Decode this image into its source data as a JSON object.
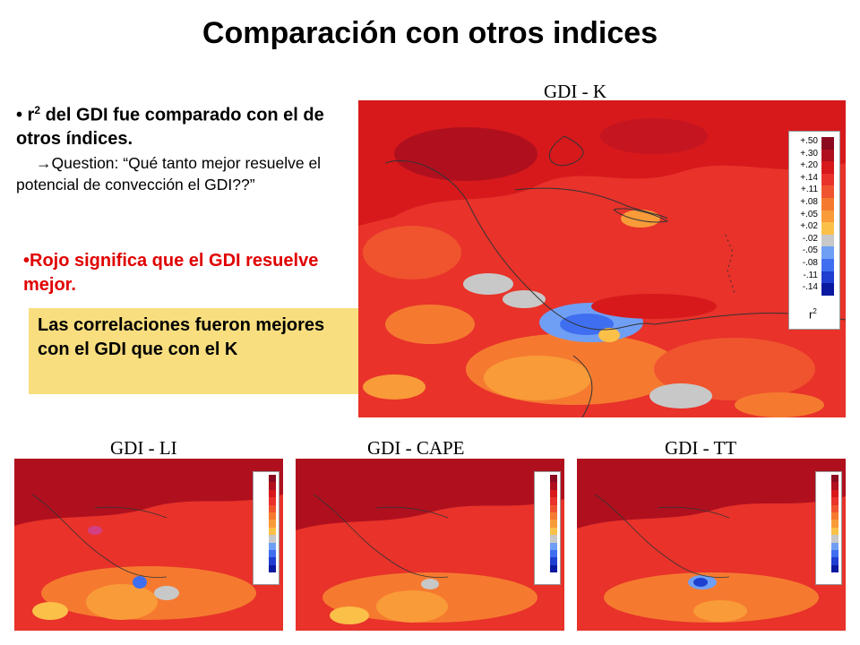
{
  "slide": {
    "title": "Comparación con otros indices",
    "bullet_main_pre": "• r",
    "bullet_main_sup": "2",
    "bullet_main_post": " del GDI fue comparado con el de otros índices.",
    "question_arrow": "→",
    "question_text": "Question: “Qué tanto mejor resuelve el potencial de convección el GDI??”",
    "red_bullet": "•Rojo significa que el GDI resuelve mejor.",
    "callout": "Las correlaciones fueron mejores con el GDI que con el K"
  },
  "maps": {
    "main_label": "GDI - K",
    "small_labels": [
      "GDI - LI",
      "GDI - CAPE",
      "GDI - TT"
    ],
    "legend_values": [
      "+.50",
      "+.30",
      "+.20",
      "+.14",
      "+.11",
      "+.08",
      "+.05",
      "+.02",
      "-.02",
      "-.05",
      "-.08",
      "-.11",
      "-.14"
    ],
    "legend_colors": [
      "#8b0a1f",
      "#b0101e",
      "#d7191c",
      "#e8322a",
      "#f0542e",
      "#f57a30",
      "#f99b38",
      "#fbc048",
      "#c8c8c8",
      "#6f9ff5",
      "#3f6ff0",
      "#1f3fd0",
      "#0a1aa0"
    ],
    "legend_unit": "r",
    "legend_unit_sup": "2"
  }
}
